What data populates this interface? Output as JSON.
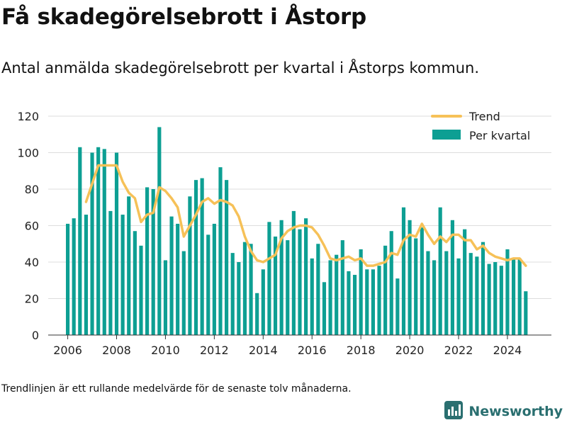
{
  "header": {
    "title": "Få skadegörelsebrott i Åstorp",
    "subtitle": "Antal anmälda skadegörelsebrott per kvartal i Åstorps kommun."
  },
  "footer": {
    "note": "Trendlinjen är ett rullande medelvärde för de senaste tolv månaderna.",
    "brand": "Newsworthy",
    "logo_icon": "bar-chart-logo-icon"
  },
  "colors": {
    "bars": "#0d9f93",
    "trend": "#f6c158",
    "grid": "#dddddd",
    "brand": "#2a6f70"
  },
  "chart_data": {
    "type": "bar",
    "xlabel": "",
    "ylabel": "",
    "ylim": [
      0,
      120
    ],
    "yticks": [
      0,
      20,
      40,
      60,
      80,
      100,
      120
    ],
    "xlim": [
      2005.2,
      2025.8
    ],
    "xticks": [
      2006,
      2008,
      2010,
      2012,
      2014,
      2016,
      2018,
      2020,
      2022,
      2024
    ],
    "grid": true,
    "legend_position": "top-right",
    "x_start": 2006.0,
    "x_step": 0.25,
    "series": [
      {
        "name": "Per kvartal",
        "type": "bar",
        "values": [
          61,
          64,
          103,
          66,
          100,
          103,
          102,
          68,
          100,
          66,
          76,
          57,
          49,
          81,
          80,
          114,
          41,
          65,
          61,
          46,
          76,
          85,
          86,
          55,
          61,
          92,
          85,
          45,
          40,
          51,
          50,
          23,
          36,
          62,
          54,
          63,
          52,
          68,
          58,
          64,
          42,
          50,
          29,
          41,
          44,
          52,
          35,
          33,
          47,
          36,
          36,
          38,
          49,
          57,
          31,
          70,
          63,
          53,
          59,
          46,
          41,
          70,
          46,
          63,
          42,
          58,
          45,
          43,
          51,
          39,
          40,
          38,
          47,
          42,
          42,
          24
        ]
      },
      {
        "name": "Trend",
        "type": "line",
        "x": [
          2006.75,
          2007.0,
          2007.25,
          2007.5,
          2007.75,
          2008.0,
          2008.25,
          2008.5,
          2008.75,
          2009.0,
          2009.25,
          2009.5,
          2009.75,
          2010.0,
          2010.25,
          2010.5,
          2010.75,
          2011.0,
          2011.25,
          2011.5,
          2011.75,
          2012.0,
          2012.25,
          2012.5,
          2012.75,
          2013.0,
          2013.25,
          2013.5,
          2013.75,
          2014.0,
          2014.25,
          2014.5,
          2014.75,
          2015.0,
          2015.25,
          2015.5,
          2015.75,
          2016.0,
          2016.25,
          2016.5,
          2016.75,
          2017.0,
          2017.25,
          2017.5,
          2017.75,
          2018.0,
          2018.25,
          2018.5,
          2018.75,
          2019.0,
          2019.25,
          2019.5,
          2019.75,
          2020.0,
          2020.25,
          2020.5,
          2020.75,
          2021.0,
          2021.25,
          2021.5,
          2021.75,
          2022.0,
          2022.25,
          2022.5,
          2022.75,
          2023.0,
          2023.25,
          2023.5,
          2023.75,
          2024.0,
          2024.25,
          2024.5,
          2024.75
        ],
        "values": [
          73,
          83,
          93,
          93,
          93,
          93,
          84,
          78,
          75,
          62,
          66,
          67,
          81,
          79,
          75,
          70,
          54,
          60,
          66,
          73,
          75,
          72,
          74,
          73,
          71,
          65,
          54,
          46,
          41,
          40,
          42,
          44,
          53,
          57,
          59,
          60,
          60,
          59,
          55,
          49,
          42,
          41,
          42,
          43,
          41,
          42,
          38,
          38,
          39,
          40,
          45,
          44,
          52,
          55,
          54,
          61,
          55,
          50,
          54,
          51,
          55,
          55,
          52,
          52,
          47,
          49,
          45,
          43,
          42,
          41,
          42,
          42,
          38
        ]
      }
    ]
  }
}
